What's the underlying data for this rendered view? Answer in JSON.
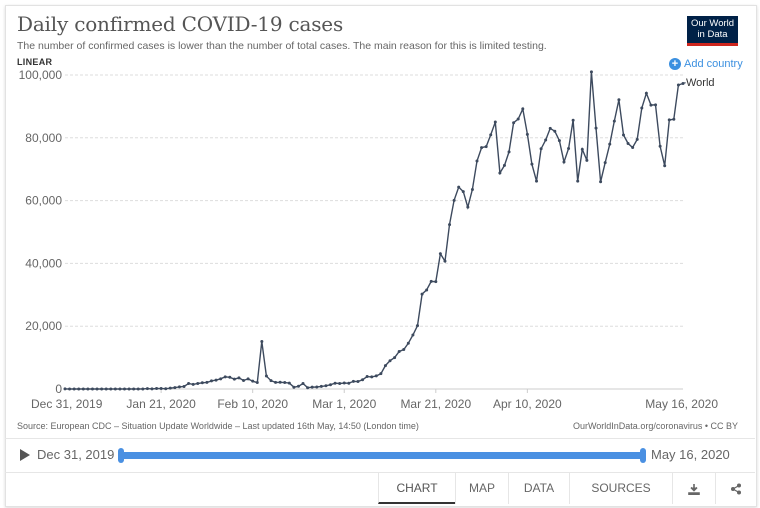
{
  "header": {
    "title": "Daily confirmed COVID-19 cases",
    "subtitle": "The number of confirmed cases is lower than the number of total cases. The main reason for this is limited testing.",
    "logo_line1": "Our World",
    "logo_line2": "in Data",
    "scale_toggle": "LINEAR",
    "add_country": "Add country"
  },
  "footer": {
    "source": "Source: European CDC – Situation Update Worldwide – Last updated 16th May, 14:50 (London time)",
    "credit": "OurWorldInData.org/coronavirus • CC BY"
  },
  "timeline": {
    "start": "Dec 31, 2019",
    "end": "May 16, 2020"
  },
  "tabs": [
    {
      "label": "CHART",
      "active": true
    },
    {
      "label": "MAP",
      "active": false
    },
    {
      "label": "DATA",
      "active": false
    },
    {
      "label": "SOURCES",
      "active": false
    }
  ],
  "icons": {
    "download": "download-icon",
    "share": "share-icon",
    "play": "play-icon",
    "add": "plus-circle-icon"
  },
  "colors": {
    "line": "#3d4a5e",
    "accent": "#3c90e0",
    "logo_bg": "#002147",
    "logo_bar": "#ce261e"
  },
  "chart_data": {
    "type": "line",
    "title": "Daily confirmed COVID-19 cases",
    "xlabel": "",
    "ylabel": "",
    "ylim": [
      0,
      100000
    ],
    "yticks": [
      0,
      20000,
      40000,
      60000,
      80000,
      100000
    ],
    "ytick_labels": [
      "0",
      "20,000",
      "40,000",
      "60,000",
      "80,000",
      "100,000"
    ],
    "xtick_labels": [
      "Dec 31, 2019",
      "Jan 21, 2020",
      "Feb 10, 2020",
      "Mar 1, 2020",
      "Mar 21, 2020",
      "Apr 10, 2020",
      "May 16, 2020"
    ],
    "xtick_days": [
      0,
      21,
      41,
      61,
      81,
      101,
      137
    ],
    "x_start": "Dec 31, 2019",
    "x_end": "May 16, 2020",
    "grid": true,
    "legend": "right",
    "series": [
      {
        "name": "World",
        "values": [
          27,
          0,
          0,
          17,
          0,
          15,
          0,
          0,
          0,
          0,
          0,
          1,
          0,
          1,
          1,
          0,
          4,
          17,
          136,
          20,
          151,
          140,
          97,
          259,
          441,
          665,
          787,
          1753,
          1466,
          1740,
          1980,
          2095,
          2590,
          2829,
          3237,
          3872,
          3727,
          3164,
          3525,
          2718,
          3212,
          2493,
          2052,
          15141,
          4123,
          2658,
          2097,
          2141,
          2053,
          1885,
          558,
          868,
          1749,
          406,
          585,
          625,
          835,
          1026,
          1366,
          1840,
          1756,
          1892,
          1837,
          2426,
          2396,
          2953,
          3962,
          3861,
          4179,
          4885,
          7457,
          8998,
          9993,
          11941,
          12583,
          14563,
          17189,
          20172,
          30217,
          31548,
          34281,
          34181,
          43091,
          40712,
          52352,
          60091,
          64305,
          62877,
          57914,
          63551,
          72600,
          76888,
          77200,
          80919,
          85012,
          68800,
          71200,
          75500,
          84800,
          86000,
          89200,
          81100,
          71600,
          66200,
          76500,
          79300,
          83000,
          82100,
          79100,
          72300,
          76600,
          85600,
          66200,
          76300,
          72800,
          101000,
          83100,
          66000,
          72100,
          78000,
          85300,
          92100,
          80900,
          78200,
          76900,
          79500,
          89500,
          94200,
          90400,
          90500,
          77300,
          71100,
          85700,
          85900,
          96800,
          97300
        ]
      }
    ]
  }
}
